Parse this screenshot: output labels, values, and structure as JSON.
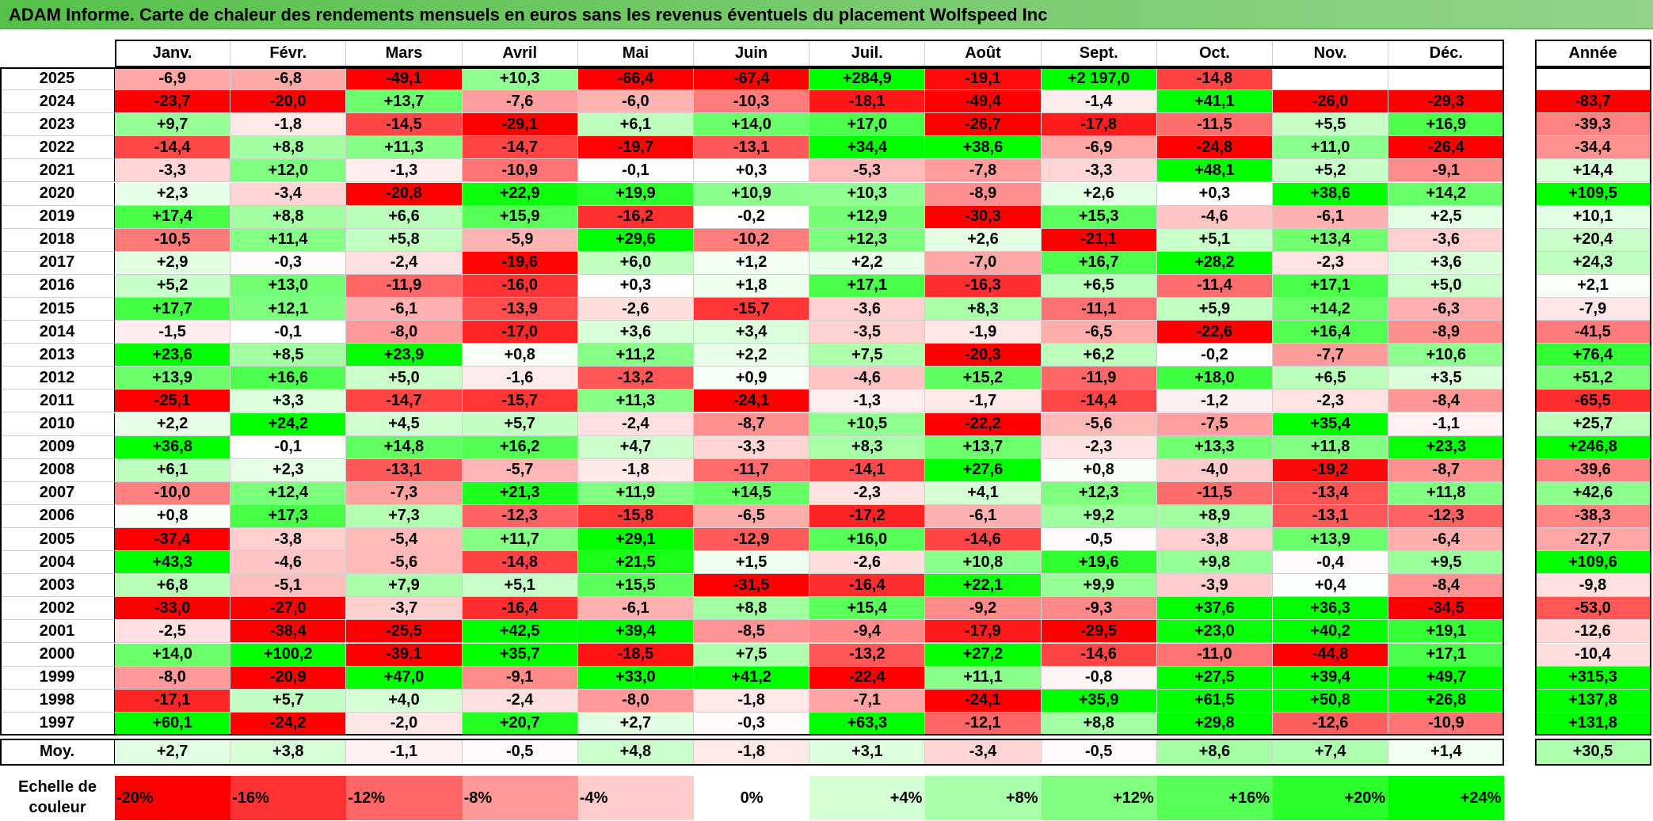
{
  "title": "ADAM Informe. Carte de chaleur des rendements mensuels en euros sans les revenus éventuels du placement Wolfspeed Inc",
  "year_header": "Année",
  "average_label": "Moy.",
  "legend_label": "Echelle de couleur",
  "chart_data": {
    "type": "heatmap",
    "title": "ADAM Informe. Carte de chaleur des rendements mensuels en euros sans les revenus éventuels du placement Wolfspeed Inc",
    "months": [
      "Janv.",
      "Févr.",
      "Mars",
      "Avril",
      "Mai",
      "Juin",
      "Juil.",
      "Août",
      "Sept.",
      "Oct.",
      "Nov.",
      "Déc."
    ],
    "rows": [
      {
        "year": "2025",
        "values": [
          "-6,9",
          "-6,8",
          "-49,1",
          "+10,3",
          "-66,4",
          "-67,4",
          "+284,9",
          "-19,1",
          "+2 197,0",
          "-14,8",
          "",
          ""
        ],
        "annual": ""
      },
      {
        "year": "2024",
        "values": [
          "-23,7",
          "-20,0",
          "+13,7",
          "-7,6",
          "-6,0",
          "-10,3",
          "-18,1",
          "-49,4",
          "-1,4",
          "+41,1",
          "-26,0",
          "-29,3"
        ],
        "annual": "-83,7"
      },
      {
        "year": "2023",
        "values": [
          "+9,7",
          "-1,8",
          "-14,5",
          "-29,1",
          "+6,1",
          "+14,0",
          "+17,0",
          "-26,7",
          "-17,8",
          "-11,5",
          "+5,5",
          "+16,9"
        ],
        "annual": "-39,3"
      },
      {
        "year": "2022",
        "values": [
          "-14,4",
          "+8,8",
          "+11,3",
          "-14,7",
          "-19,7",
          "-13,1",
          "+34,4",
          "+38,6",
          "-6,9",
          "-24,8",
          "+11,0",
          "-26,4"
        ],
        "annual": "-34,4"
      },
      {
        "year": "2021",
        "values": [
          "-3,3",
          "+12,0",
          "-1,3",
          "-10,9",
          "-0,1",
          "+0,3",
          "-5,3",
          "-7,8",
          "-3,3",
          "+48,1",
          "+5,2",
          "-9,1"
        ],
        "annual": "+14,4"
      },
      {
        "year": "2020",
        "values": [
          "+2,3",
          "-3,4",
          "-20,8",
          "+22,9",
          "+19,9",
          "+10,9",
          "+10,3",
          "-8,9",
          "+2,6",
          "+0,3",
          "+38,6",
          "+14,2"
        ],
        "annual": "+109,5"
      },
      {
        "year": "2019",
        "values": [
          "+17,4",
          "+8,8",
          "+6,6",
          "+15,9",
          "-16,2",
          "-0,2",
          "+12,9",
          "-30,3",
          "+15,3",
          "-4,6",
          "-6,1",
          "+2,5"
        ],
        "annual": "+10,1"
      },
      {
        "year": "2018",
        "values": [
          "-10,5",
          "+11,4",
          "+5,8",
          "-5,9",
          "+29,6",
          "-10,2",
          "+12,3",
          "+2,6",
          "-21,1",
          "+5,1",
          "+13,4",
          "-3,6"
        ],
        "annual": "+20,4"
      },
      {
        "year": "2017",
        "values": [
          "+2,9",
          "-0,3",
          "-2,4",
          "-19,6",
          "+6,0",
          "+1,2",
          "+2,2",
          "-7,0",
          "+16,7",
          "+28,2",
          "-2,3",
          "+3,6"
        ],
        "annual": "+24,3"
      },
      {
        "year": "2016",
        "values": [
          "+5,2",
          "+13,0",
          "-11,9",
          "-16,0",
          "+0,3",
          "+1,8",
          "+17,1",
          "-16,3",
          "+6,5",
          "-11,4",
          "+17,1",
          "+5,0"
        ],
        "annual": "+2,1"
      },
      {
        "year": "2015",
        "values": [
          "+17,7",
          "+12,1",
          "-6,1",
          "-13,9",
          "-2,6",
          "-15,7",
          "-3,6",
          "+8,3",
          "-11,1",
          "+5,9",
          "+14,2",
          "-6,3"
        ],
        "annual": "-7,9"
      },
      {
        "year": "2014",
        "values": [
          "-1,5",
          "-0,1",
          "-8,0",
          "-17,0",
          "+3,6",
          "+3,4",
          "-3,5",
          "-1,9",
          "-6,5",
          "-22,6",
          "+16,4",
          "-8,9"
        ],
        "annual": "-41,5"
      },
      {
        "year": "2013",
        "values": [
          "+23,6",
          "+8,5",
          "+23,9",
          "+0,8",
          "+11,2",
          "+2,2",
          "+7,5",
          "-20,3",
          "+6,2",
          "-0,2",
          "-7,7",
          "+10,6"
        ],
        "annual": "+76,4"
      },
      {
        "year": "2012",
        "values": [
          "+13,9",
          "+16,6",
          "+5,0",
          "-1,6",
          "-13,2",
          "+0,9",
          "-4,6",
          "+15,2",
          "-11,9",
          "+18,0",
          "+6,5",
          "+3,5"
        ],
        "annual": "+51,2"
      },
      {
        "year": "2011",
        "values": [
          "-25,1",
          "+3,3",
          "-14,7",
          "-15,7",
          "+11,3",
          "-24,1",
          "-1,3",
          "-1,7",
          "-14,4",
          "-1,2",
          "-2,3",
          "-8,4"
        ],
        "annual": "-65,5"
      },
      {
        "year": "2010",
        "values": [
          "+2,2",
          "+24,2",
          "+4,5",
          "+5,7",
          "-2,4",
          "-8,7",
          "+10,5",
          "-22,2",
          "-5,6",
          "-7,5",
          "+35,4",
          "-1,1"
        ],
        "annual": "+25,7"
      },
      {
        "year": "2009",
        "values": [
          "+36,8",
          "-0,1",
          "+14,8",
          "+16,2",
          "+4,7",
          "-3,3",
          "+8,3",
          "+13,7",
          "-2,3",
          "+13,3",
          "+11,8",
          "+23,3"
        ],
        "annual": "+246,8"
      },
      {
        "year": "2008",
        "values": [
          "+6,1",
          "+2,3",
          "-13,1",
          "-5,7",
          "-1,8",
          "-11,7",
          "-14,1",
          "+27,6",
          "+0,8",
          "-4,0",
          "-19,2",
          "-8,7"
        ],
        "annual": "-39,6"
      },
      {
        "year": "2007",
        "values": [
          "-10,0",
          "+12,4",
          "-7,3",
          "+21,3",
          "+11,9",
          "+14,5",
          "-2,3",
          "+4,1",
          "+12,3",
          "-11,5",
          "-13,4",
          "+11,8"
        ],
        "annual": "+42,6"
      },
      {
        "year": "2006",
        "values": [
          "+0,8",
          "+17,3",
          "+7,3",
          "-12,3",
          "-15,8",
          "-6,5",
          "-17,2",
          "-6,1",
          "+9,2",
          "+8,9",
          "-13,1",
          "-12,3"
        ],
        "annual": "-38,3"
      },
      {
        "year": "2005",
        "values": [
          "-37,4",
          "-3,8",
          "-5,4",
          "+11,7",
          "+29,1",
          "-12,9",
          "+16,0",
          "-14,6",
          "-0,5",
          "-3,8",
          "+13,9",
          "-6,4"
        ],
        "annual": "-27,7"
      },
      {
        "year": "2004",
        "values": [
          "+43,3",
          "-4,6",
          "-5,6",
          "-14,8",
          "+21,5",
          "+1,5",
          "-2,6",
          "+10,8",
          "+19,6",
          "+9,8",
          "-0,4",
          "+9,5"
        ],
        "annual": "+109,6"
      },
      {
        "year": "2003",
        "values": [
          "+6,8",
          "-5,1",
          "+7,9",
          "+5,1",
          "+15,5",
          "-31,5",
          "-16,4",
          "+22,1",
          "+9,9",
          "-3,9",
          "+0,4",
          "-8,4"
        ],
        "annual": "-9,8"
      },
      {
        "year": "2002",
        "values": [
          "-33,0",
          "-27,0",
          "-3,7",
          "-16,4",
          "-6,1",
          "+8,8",
          "+15,4",
          "-9,2",
          "-9,3",
          "+37,6",
          "+36,3",
          "-34,5"
        ],
        "annual": "-53,0"
      },
      {
        "year": "2001",
        "values": [
          "-2,5",
          "-38,4",
          "-25,5",
          "+42,5",
          "+39,4",
          "-8,5",
          "-9,4",
          "-17,9",
          "-29,5",
          "+23,0",
          "+40,2",
          "+19,1"
        ],
        "annual": "-12,6"
      },
      {
        "year": "2000",
        "values": [
          "+14,0",
          "+100,2",
          "-39,1",
          "+35,7",
          "-18,5",
          "+7,5",
          "-13,2",
          "+27,2",
          "-14,6",
          "-11,0",
          "-44,8",
          "+17,1"
        ],
        "annual": "-10,4"
      },
      {
        "year": "1999",
        "values": [
          "-8,0",
          "-20,9",
          "+47,0",
          "-9,1",
          "+33,0",
          "+41,2",
          "-22,4",
          "+11,1",
          "-0,8",
          "+27,5",
          "+39,4",
          "+49,7"
        ],
        "annual": "+315,3"
      },
      {
        "year": "1998",
        "values": [
          "-17,1",
          "+5,7",
          "+4,0",
          "-2,4",
          "-8,0",
          "-1,8",
          "-7,1",
          "-24,1",
          "+35,9",
          "+61,5",
          "+50,8",
          "+26,8"
        ],
        "annual": "+137,8"
      },
      {
        "year": "1997",
        "values": [
          "+60,1",
          "-24,2",
          "-2,0",
          "+20,7",
          "+2,7",
          "-0,3",
          "+63,3",
          "-12,1",
          "+8,8",
          "+29,8",
          "-12,6",
          "-10,9"
        ],
        "annual": "+131,8"
      }
    ],
    "averages": [
      "+2,7",
      "+3,8",
      "-1,1",
      "-0,5",
      "+4,8",
      "-1,8",
      "+3,1",
      "-3,4",
      "-0,5",
      "+8,6",
      "+7,4",
      "+1,4"
    ],
    "average_annual": "+30,5",
    "color_scale": [
      {
        "label": "-20%",
        "value": -20,
        "color": "#ff0000"
      },
      {
        "label": "-16%",
        "value": -16,
        "color": "#ff3333"
      },
      {
        "label": "-12%",
        "value": -12,
        "color": "#ff6666"
      },
      {
        "label": "-8%",
        "value": -8,
        "color": "#ff9999"
      },
      {
        "label": "-4%",
        "value": -4,
        "color": "#ffcccc"
      },
      {
        "label": "0%",
        "value": 0,
        "color": "#ffffff"
      },
      {
        "label": "+4%",
        "value": 4,
        "color": "#d5ffd5"
      },
      {
        "label": "+8%",
        "value": 8,
        "color": "#aaffaa"
      },
      {
        "label": "+12%",
        "value": 12,
        "color": "#80ff80"
      },
      {
        "label": "+16%",
        "value": 16,
        "color": "#55ff55"
      },
      {
        "label": "+20%",
        "value": 20,
        "color": "#2bff2b"
      },
      {
        "label": "+24%",
        "value": 24,
        "color": "#00ff00"
      }
    ]
  }
}
